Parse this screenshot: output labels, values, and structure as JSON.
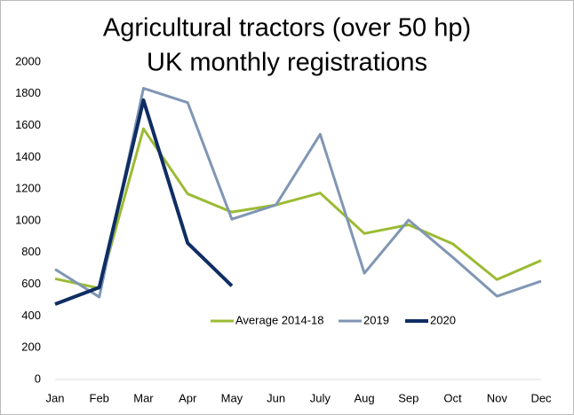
{
  "chart_data": {
    "type": "line",
    "title": "Agricultural tractors (over 50 hp)",
    "subtitle": "UK monthly registrations",
    "categories": [
      "Jan",
      "Feb",
      "Mar",
      "Apr",
      "May",
      "Jun",
      "July",
      "Aug",
      "Sep",
      "Oct",
      "Nov",
      "Dec"
    ],
    "series": [
      {
        "name": "Average 2014-18",
        "color": "#9bbb34",
        "values": [
          635,
          575,
          1580,
          1170,
          1055,
          1100,
          1175,
          920,
          975,
          855,
          630,
          750
        ]
      },
      {
        "name": "2019",
        "color": "#8096b4",
        "values": [
          695,
          520,
          1835,
          1745,
          1010,
          1100,
          1545,
          670,
          1005,
          770,
          525,
          620
        ]
      },
      {
        "name": "2020",
        "color": "#0e2d63",
        "values": [
          475,
          580,
          1760,
          860,
          590,
          null,
          null,
          null,
          null,
          null,
          null,
          null
        ]
      }
    ],
    "ylim": [
      0,
      2000
    ],
    "yticks": [
      0,
      200,
      400,
      600,
      800,
      1000,
      1200,
      1400,
      1600,
      1800,
      2000
    ],
    "grid": false
  }
}
